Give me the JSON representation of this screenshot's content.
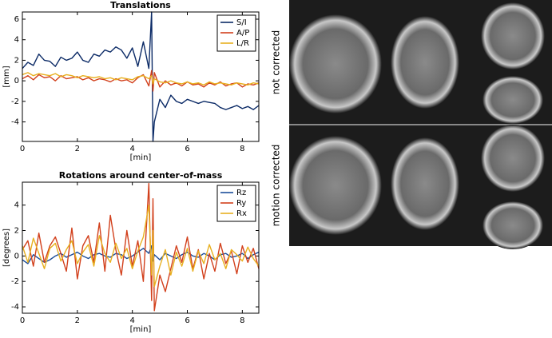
{
  "chart_data": [
    {
      "type": "line",
      "title": "Translations",
      "x_label": "[min]",
      "y_label": "[mm]",
      "x": [
        0,
        0.2,
        0.4,
        0.6,
        0.8,
        1,
        1.2,
        1.4,
        1.6,
        1.8,
        2,
        2.2,
        2.4,
        2.6,
        2.8,
        3,
        3.2,
        3.4,
        3.6,
        3.8,
        4,
        4.2,
        4.4,
        4.6,
        4.7,
        4.75,
        4.8,
        5,
        5.2,
        5.4,
        5.6,
        5.8,
        6,
        6.2,
        6.4,
        6.6,
        6.8,
        7,
        7.2,
        7.4,
        7.6,
        7.8,
        8,
        8.2,
        8.4,
        8.6
      ],
      "series": [
        {
          "name": "S/I",
          "color": "#0b2a66",
          "values": [
            1.2,
            1.8,
            1.5,
            2.6,
            2.0,
            1.9,
            1.4,
            2.3,
            2.0,
            2.2,
            2.8,
            2.0,
            1.8,
            2.6,
            2.4,
            3.0,
            2.8,
            3.3,
            3.0,
            2.2,
            3.2,
            1.4,
            3.8,
            1.2,
            6.7,
            -5.9,
            -4.0,
            -1.8,
            -2.6,
            -1.4,
            -2.0,
            -2.2,
            -1.8,
            -2.0,
            -2.2,
            -2.0,
            -2.1,
            -2.2,
            -2.6,
            -2.8,
            -2.6,
            -2.4,
            -2.7,
            -2.5,
            -2.8,
            -2.4
          ]
        },
        {
          "name": "A/P",
          "color": "#d2401c",
          "values": [
            0.2,
            0.5,
            0.1,
            0.6,
            0.3,
            0.4,
            0.0,
            0.5,
            0.2,
            0.3,
            0.4,
            0.1,
            0.3,
            0.0,
            0.2,
            0.1,
            -0.1,
            0.2,
            0.0,
            0.1,
            -0.2,
            0.3,
            0.6,
            -0.5,
            1.0,
            -1.0,
            0.8,
            -0.6,
            0.0,
            -0.4,
            -0.2,
            -0.5,
            -0.1,
            -0.4,
            -0.3,
            -0.6,
            -0.2,
            -0.4,
            -0.1,
            -0.5,
            -0.3,
            -0.2,
            -0.6,
            -0.3,
            -0.4,
            -0.2
          ]
        },
        {
          "name": "L/R",
          "color": "#e8b020",
          "values": [
            0.6,
            0.8,
            0.5,
            0.7,
            0.6,
            0.5,
            0.7,
            0.4,
            0.6,
            0.5,
            0.3,
            0.5,
            0.4,
            0.3,
            0.4,
            0.2,
            0.3,
            0.1,
            0.3,
            0.2,
            0.1,
            0.4,
            0.5,
            0.2,
            0.5,
            -0.3,
            0.2,
            -0.1,
            -0.2,
            0.0,
            -0.2,
            -0.3,
            -0.1,
            -0.3,
            -0.2,
            -0.4,
            -0.1,
            -0.3,
            -0.2,
            -0.3,
            -0.4,
            -0.2,
            -0.3,
            -0.4,
            -0.2,
            -0.3
          ]
        }
      ],
      "xlim": [
        0,
        8.6
      ],
      "xticks": [
        0,
        2,
        4,
        6,
        8
      ],
      "ylim": [
        -5.9,
        6.7
      ],
      "yticks": [
        -4,
        -2,
        0,
        2,
        4,
        6
      ],
      "legend": "upper right"
    },
    {
      "type": "line",
      "title": "Rotations around center-of-mass",
      "x_label": "[min]",
      "y_label": "[degrees]",
      "x": [
        0,
        0.2,
        0.4,
        0.6,
        0.8,
        1,
        1.2,
        1.4,
        1.6,
        1.8,
        2,
        2.2,
        2.4,
        2.6,
        2.8,
        3,
        3.2,
        3.4,
        3.6,
        3.8,
        4,
        4.2,
        4.4,
        4.6,
        4.7,
        4.75,
        4.8,
        5,
        5.2,
        5.4,
        5.6,
        5.8,
        6,
        6.2,
        6.4,
        6.6,
        6.8,
        7,
        7.2,
        7.4,
        7.6,
        7.8,
        8,
        8.2,
        8.4,
        8.6
      ],
      "series": [
        {
          "name": "Rz",
          "color": "#1c4e9a",
          "values": [
            -0.3,
            -0.6,
            0.1,
            -0.2,
            -0.5,
            -0.3,
            0.0,
            0.2,
            -0.1,
            0.1,
            0.3,
            0.0,
            -0.2,
            0.1,
            0.2,
            0.0,
            -0.1,
            0.2,
            0.1,
            -0.2,
            0.0,
            0.3,
            0.6,
            0.2,
            0.8,
            -0.4,
            0.1,
            -0.3,
            0.2,
            0.0,
            -0.2,
            0.1,
            0.3,
            0.0,
            -0.1,
            0.2,
            0.0,
            -0.3,
            0.1,
            0.2,
            -0.1,
            0.0,
            0.2,
            -0.2,
            0.1,
            0.3
          ]
        },
        {
          "name": "Ry",
          "color": "#d2401c",
          "values": [
            0.5,
            1.2,
            -0.8,
            1.8,
            -0.5,
            0.8,
            1.5,
            0.2,
            -1.2,
            2.2,
            -1.8,
            0.8,
            1.6,
            -0.5,
            2.6,
            -1.2,
            3.2,
            0.5,
            -1.5,
            2.0,
            -0.8,
            1.2,
            -2.0,
            5.7,
            -3.5,
            4.5,
            -4.3,
            -1.5,
            -2.8,
            -1.0,
            0.8,
            -0.5,
            1.5,
            -1.0,
            0.5,
            -1.8,
            0.2,
            -1.2,
            1.0,
            -0.6,
            0.4,
            -1.4,
            0.8,
            -0.5,
            0.6,
            -1.0
          ]
        },
        {
          "name": "Rx",
          "color": "#e8b020",
          "values": [
            0.8,
            -0.5,
            1.4,
            0.2,
            -1.0,
            0.6,
            1.0,
            -0.4,
            0.5,
            1.2,
            -0.6,
            0.3,
            0.9,
            -0.8,
            1.6,
            0.2,
            -0.5,
            1.0,
            -0.2,
            0.6,
            -1.0,
            0.4,
            1.5,
            4.0,
            -1.5,
            2.0,
            -2.4,
            -0.8,
            0.5,
            -1.5,
            0.3,
            -0.8,
            0.6,
            -1.2,
            0.4,
            -0.6,
            0.9,
            -0.3,
            0.2,
            -1.0,
            0.5,
            0.1,
            -0.4,
            0.7,
            -0.2,
            -0.8
          ]
        }
      ],
      "xlim": [
        0,
        8.6
      ],
      "xticks": [
        0,
        2,
        4,
        6,
        8
      ],
      "ylim": [
        -4.5,
        5.8
      ],
      "yticks": [
        -4,
        -2,
        0,
        2,
        4
      ],
      "legend": "upper right"
    }
  ],
  "image_panel": {
    "row_labels": [
      "not corrected",
      "motion corrected"
    ]
  }
}
